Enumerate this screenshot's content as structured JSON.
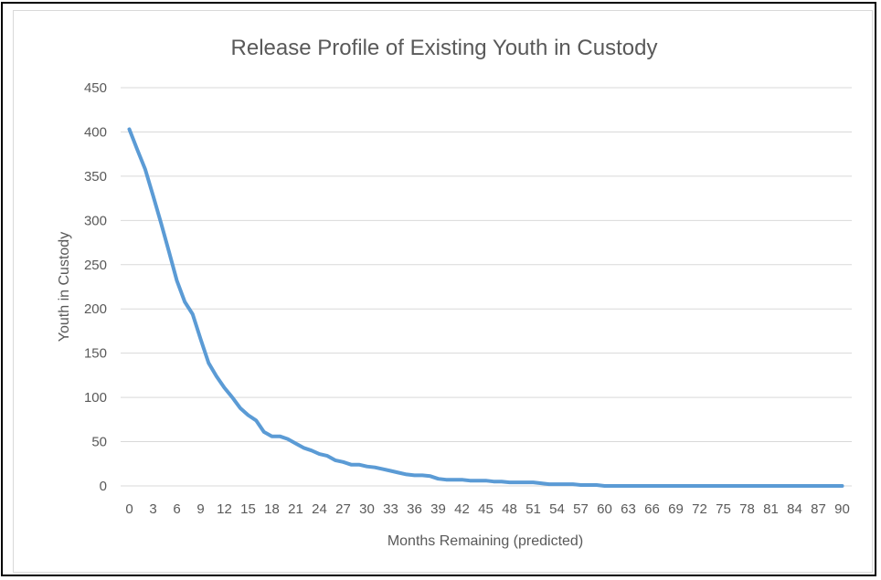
{
  "chart_data": {
    "type": "line",
    "title": "Release Profile of Existing Youth in Custody",
    "xlabel": "Months Remaining (predicted)",
    "ylabel": "Youth in Custody",
    "ylim": [
      0,
      450
    ],
    "y_ticks": [
      "0",
      "50",
      "100",
      "150",
      "200",
      "250",
      "300",
      "350",
      "400",
      "450"
    ],
    "x_tick_labels": [
      "0",
      "3",
      "6",
      "9",
      "12",
      "15",
      "18",
      "21",
      "24",
      "27",
      "30",
      "33",
      "36",
      "39",
      "42",
      "45",
      "48",
      "51",
      "54",
      "57",
      "60",
      "63",
      "66",
      "69",
      "72",
      "75",
      "78",
      "81",
      "84",
      "87",
      "90"
    ],
    "grid": true,
    "legend": "none",
    "line_color": "#5b9bd5",
    "x": [
      0,
      1,
      2,
      3,
      4,
      5,
      6,
      7,
      8,
      9,
      10,
      11,
      12,
      13,
      14,
      15,
      16,
      17,
      18,
      19,
      20,
      21,
      22,
      23,
      24,
      25,
      26,
      27,
      28,
      29,
      30,
      31,
      32,
      33,
      34,
      35,
      36,
      37,
      38,
      39,
      40,
      41,
      42,
      43,
      44,
      45,
      46,
      47,
      48,
      49,
      50,
      51,
      52,
      53,
      54,
      55,
      56,
      57,
      58,
      59,
      60,
      61,
      62,
      63,
      64,
      65,
      66,
      67,
      68,
      69,
      70,
      71,
      72,
      73,
      74,
      75,
      76,
      77,
      78,
      79,
      80,
      81,
      82,
      83,
      84,
      85,
      86,
      87,
      88,
      89,
      90
    ],
    "values": [
      403,
      380,
      358,
      328,
      297,
      265,
      232,
      208,
      194,
      166,
      139,
      124,
      111,
      100,
      88,
      80,
      74,
      61,
      56,
      56,
      53,
      48,
      43,
      40,
      36,
      34,
      29,
      27,
      24,
      24,
      22,
      21,
      19,
      17,
      15,
      13,
      12,
      12,
      11,
      8,
      7,
      7,
      7,
      6,
      6,
      6,
      5,
      5,
      4,
      4,
      4,
      4,
      3,
      2,
      2,
      2,
      2,
      1,
      1,
      1,
      0,
      0,
      0,
      0,
      0,
      0,
      0,
      0,
      0,
      0,
      0,
      0,
      0,
      0,
      0,
      0,
      0,
      0,
      0,
      0,
      0,
      0,
      0,
      0,
      0,
      0,
      0,
      0,
      0,
      0,
      0
    ]
  }
}
